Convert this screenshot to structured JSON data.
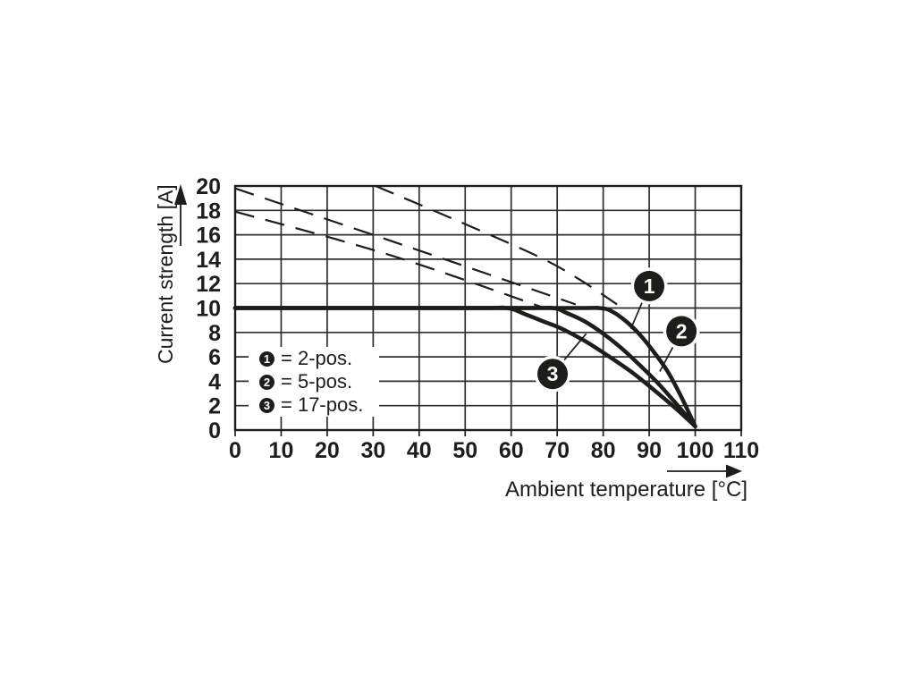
{
  "figure": {
    "background": "#ffffff",
    "ink_color": "#1d1d1b",
    "grid_color": "#2e2e2e"
  },
  "chart_data": {
    "type": "line",
    "title": "",
    "xlabel": "Ambient temperature [°C]",
    "ylabel": "Current strength [A]",
    "xlim": [
      0,
      110
    ],
    "ylim": [
      0,
      20
    ],
    "x_ticks": [
      0,
      10,
      20,
      30,
      40,
      50,
      60,
      70,
      80,
      90,
      100,
      110
    ],
    "y_ticks": [
      0,
      2,
      4,
      6,
      8,
      10,
      12,
      14,
      16,
      18,
      20
    ],
    "grid": "on",
    "rated_current_plateau_A": 10,
    "common_zero_point": [
      100,
      0
    ],
    "series": [
      {
        "id": "curve-1",
        "legend_marker": "1",
        "legend_label": "= 2-pos.",
        "style": "solid",
        "points": [
          [
            0,
            10
          ],
          [
            70,
            10
          ],
          [
            79,
            10
          ],
          [
            82,
            9.7
          ],
          [
            85,
            8.9
          ],
          [
            88,
            7.8
          ],
          [
            91,
            6.4
          ],
          [
            94,
            4.8
          ],
          [
            97,
            2.7
          ],
          [
            100,
            0.3
          ]
        ]
      },
      {
        "id": "curve-2",
        "legend_marker": "2",
        "legend_label": "= 5-pos.",
        "style": "solid",
        "points": [
          [
            0,
            10
          ],
          [
            61,
            10
          ],
          [
            69,
            10
          ],
          [
            72,
            9.6
          ],
          [
            76,
            8.9
          ],
          [
            80,
            7.9
          ],
          [
            84,
            6.7
          ],
          [
            88,
            5.3
          ],
          [
            92,
            3.8
          ],
          [
            96,
            2.1
          ],
          [
            100,
            0.3
          ]
        ]
      },
      {
        "id": "curve-3",
        "legend_marker": "3",
        "legend_label": "= 17-pos.",
        "style": "solid",
        "points": [
          [
            0,
            10
          ],
          [
            51,
            10
          ],
          [
            59,
            10
          ],
          [
            63,
            9.5
          ],
          [
            67,
            8.9
          ],
          [
            71,
            8.3
          ],
          [
            76,
            7.3
          ],
          [
            81,
            6.1
          ],
          [
            86,
            4.8
          ],
          [
            91,
            3.3
          ],
          [
            96,
            1.7
          ],
          [
            100,
            0.3
          ]
        ]
      },
      {
        "id": "guide-1",
        "style": "dashed",
        "points": [
          [
            30.5,
            20
          ],
          [
            48,
            17.2
          ],
          [
            66,
            14.2
          ],
          [
            75,
            12.3
          ],
          [
            83,
            10.3
          ]
        ]
      },
      {
        "id": "guide-2",
        "style": "dashed",
        "points": [
          [
            0,
            19.8
          ],
          [
            37,
            15.1
          ],
          [
            74,
            10.3
          ]
        ]
      },
      {
        "id": "guide-3",
        "style": "dashed",
        "points": [
          [
            0,
            17.9
          ],
          [
            34,
            14.3
          ],
          [
            68,
            9.9
          ]
        ]
      }
    ],
    "callouts": [
      {
        "label": "1",
        "at": [
          90,
          11.8
        ],
        "target": [
          86,
          8.3
        ]
      },
      {
        "label": "2",
        "at": [
          97,
          8.1
        ],
        "target": [
          92.3,
          4.8
        ]
      },
      {
        "label": "3",
        "at": [
          69,
          4.6
        ],
        "target": [
          76.3,
          7.9
        ]
      }
    ],
    "legend": {
      "position": "inside-lower-left",
      "entries": [
        {
          "marker": "1",
          "label": "= 2-pos."
        },
        {
          "marker": "2",
          "label": "= 5-pos."
        },
        {
          "marker": "3",
          "label": "= 17-pos."
        }
      ]
    }
  }
}
